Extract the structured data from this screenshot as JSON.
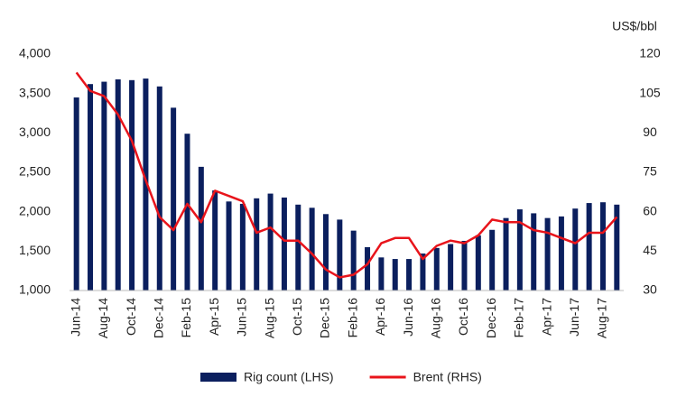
{
  "chart_data": {
    "type": "bar_line",
    "y2_label": "US$/bbl",
    "categories": [
      "Jun-14",
      null,
      "Aug-14",
      null,
      "Oct-14",
      null,
      "Dec-14",
      null,
      "Feb-15",
      null,
      "Apr-15",
      null,
      "Jun-15",
      null,
      "Aug-15",
      null,
      "Oct-15",
      null,
      "Dec-15",
      null,
      "Feb-16",
      null,
      "Apr-16",
      null,
      "Jun-16",
      null,
      "Aug-16",
      null,
      "Oct-16",
      null,
      "Dec-16",
      null,
      "Feb-17",
      null,
      "Apr-17",
      null,
      "Jun-17",
      null,
      "Aug-17",
      null
    ],
    "series": [
      {
        "name": "Rig count (LHS)",
        "color": "#0b1f5e",
        "type": "bar",
        "values": [
          3450,
          3620,
          3650,
          3680,
          3670,
          3690,
          3590,
          3320,
          2990,
          2570,
          2270,
          2130,
          2100,
          2170,
          2230,
          2180,
          2090,
          2050,
          1970,
          1900,
          1760,
          1550,
          1420,
          1400,
          1400,
          1470,
          1540,
          1590,
          1630,
          1700,
          1770,
          1920,
          2030,
          1980,
          1920,
          1940,
          2040,
          2110,
          2120,
          2090
        ]
      },
      {
        "name": "Brent (RHS)",
        "color": "#e8141b",
        "type": "line",
        "axis": "y2",
        "values": [
          113,
          106,
          104,
          97,
          87,
          72,
          58,
          53,
          63,
          56,
          68,
          66,
          64,
          52,
          54,
          49,
          49,
          44,
          38,
          35,
          36,
          40,
          48,
          50,
          50,
          42,
          47,
          49,
          48,
          51,
          57,
          56,
          56,
          53,
          52,
          50,
          48,
          52,
          52,
          58
        ]
      }
    ],
    "ylim": [
      1000,
      4000
    ],
    "yticks": [
      {
        "value": 1000,
        "label": "1,000"
      },
      {
        "value": 1500,
        "label": "1,500"
      },
      {
        "value": 2000,
        "label": "2,000"
      },
      {
        "value": 2500,
        "label": "2,500"
      },
      {
        "value": 3000,
        "label": "3,000"
      },
      {
        "value": 3500,
        "label": "3,500"
      },
      {
        "value": 4000,
        "label": "4,000"
      }
    ],
    "y2lim": [
      30,
      120
    ],
    "y2ticks": [
      30,
      45,
      60,
      75,
      90,
      105,
      120
    ],
    "legend": "bottom"
  }
}
